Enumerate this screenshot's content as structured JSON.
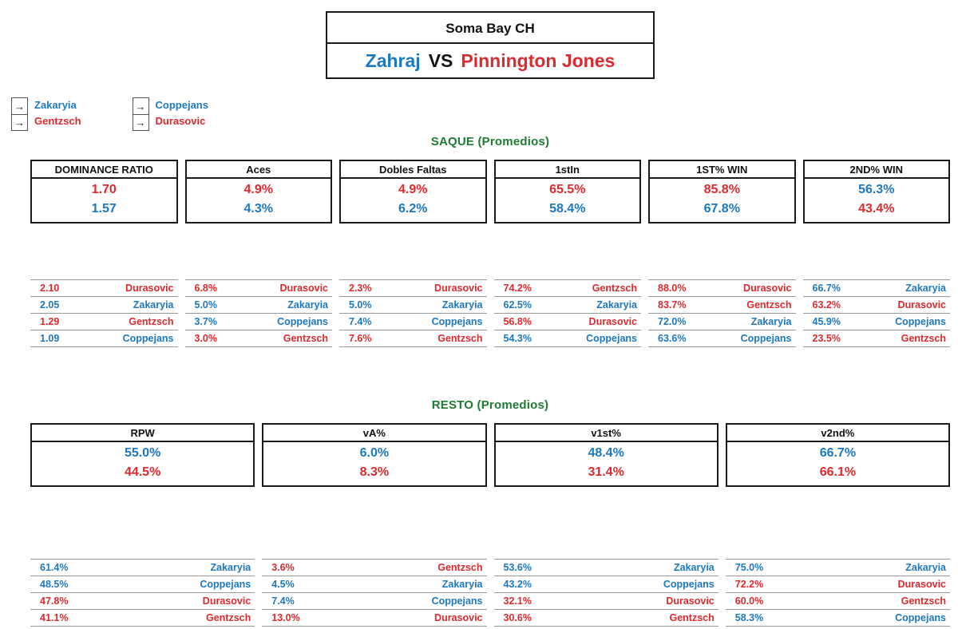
{
  "colors": {
    "blue": "#1e78be",
    "red": "#d92b30",
    "green": "#1f7a33"
  },
  "title": {
    "tournament": "Soma Bay CH",
    "player1": "Zahraj",
    "vs": "VS",
    "player2": "Pinnington Jones"
  },
  "legend": {
    "arrow": "→",
    "groups": [
      {
        "items": [
          {
            "name": "Zakaryia",
            "color": "blue"
          },
          {
            "name": "Gentzsch",
            "color": "red"
          }
        ]
      },
      {
        "items": [
          {
            "name": "Coppejans",
            "color": "blue"
          },
          {
            "name": "Durasovic",
            "color": "red"
          }
        ]
      }
    ]
  },
  "saque": {
    "header": "SAQUE (Promedios)",
    "boxes": [
      {
        "label": "DOMINANCE RATIO",
        "values": [
          {
            "text": "1.70",
            "color": "red"
          },
          {
            "text": "1.57",
            "color": "blue"
          }
        ]
      },
      {
        "label": "Aces",
        "values": [
          {
            "text": "4.9%",
            "color": "red"
          },
          {
            "text": "4.3%",
            "color": "blue"
          }
        ]
      },
      {
        "label": "Dobles Faltas",
        "values": [
          {
            "text": "4.9%",
            "color": "red"
          },
          {
            "text": "6.2%",
            "color": "blue"
          }
        ]
      },
      {
        "label": "1stIn",
        "values": [
          {
            "text": "65.5%",
            "color": "red"
          },
          {
            "text": "58.4%",
            "color": "blue"
          }
        ]
      },
      {
        "label": "1ST% WIN",
        "values": [
          {
            "text": "85.8%",
            "color": "red"
          },
          {
            "text": "67.8%",
            "color": "blue"
          }
        ]
      },
      {
        "label": "2ND% WIN",
        "values": [
          {
            "text": "56.3%",
            "color": "blue"
          },
          {
            "text": "43.4%",
            "color": "red"
          }
        ]
      }
    ],
    "lists": [
      [
        {
          "value": "2.10",
          "name": "Durasovic",
          "color": "red"
        },
        {
          "value": "2.05",
          "name": "Zakaryia",
          "color": "blue"
        },
        {
          "value": "1.29",
          "name": "Gentzsch",
          "color": "red"
        },
        {
          "value": "1.09",
          "name": "Coppejans",
          "color": "blue"
        }
      ],
      [
        {
          "value": "6.8%",
          "name": "Durasovic",
          "color": "red"
        },
        {
          "value": "5.0%",
          "name": "Zakaryia",
          "color": "blue"
        },
        {
          "value": "3.7%",
          "name": "Coppejans",
          "color": "blue"
        },
        {
          "value": "3.0%",
          "name": "Gentzsch",
          "color": "red"
        }
      ],
      [
        {
          "value": "2.3%",
          "name": "Durasovic",
          "color": "red"
        },
        {
          "value": "5.0%",
          "name": "Zakaryia",
          "color": "blue"
        },
        {
          "value": "7.4%",
          "name": "Coppejans",
          "color": "blue"
        },
        {
          "value": "7.6%",
          "name": "Gentzsch",
          "color": "red"
        }
      ],
      [
        {
          "value": "74.2%",
          "name": "Gentzsch",
          "color": "red"
        },
        {
          "value": "62.5%",
          "name": "Zakaryia",
          "color": "blue"
        },
        {
          "value": "56.8%",
          "name": "Durasovic",
          "color": "red"
        },
        {
          "value": "54.3%",
          "name": "Coppejans",
          "color": "blue"
        }
      ],
      [
        {
          "value": "88.0%",
          "name": "Durasovic",
          "color": "red"
        },
        {
          "value": "83.7%",
          "name": "Gentzsch",
          "color": "red"
        },
        {
          "value": "72.0%",
          "name": "Zakaryia",
          "color": "blue"
        },
        {
          "value": "63.6%",
          "name": "Coppejans",
          "color": "blue"
        }
      ],
      [
        {
          "value": "66.7%",
          "name": "Zakaryia",
          "color": "blue"
        },
        {
          "value": "63.2%",
          "name": "Durasovic",
          "color": "red"
        },
        {
          "value": "45.9%",
          "name": "Coppejans",
          "color": "blue"
        },
        {
          "value": "23.5%",
          "name": "Gentzsch",
          "color": "red"
        }
      ]
    ]
  },
  "resto": {
    "header": "RESTO (Promedios)",
    "boxes": [
      {
        "label": "RPW",
        "values": [
          {
            "text": "55.0%",
            "color": "blue"
          },
          {
            "text": "44.5%",
            "color": "red"
          }
        ]
      },
      {
        "label": "vA%",
        "values": [
          {
            "text": "6.0%",
            "color": "blue"
          },
          {
            "text": "8.3%",
            "color": "red"
          }
        ]
      },
      {
        "label": "v1st%",
        "values": [
          {
            "text": "48.4%",
            "color": "blue"
          },
          {
            "text": "31.4%",
            "color": "red"
          }
        ]
      },
      {
        "label": "v2nd%",
        "values": [
          {
            "text": "66.7%",
            "color": "blue"
          },
          {
            "text": "66.1%",
            "color": "red"
          }
        ]
      }
    ],
    "lists": [
      [
        {
          "value": "61.4%",
          "name": "Zakaryia",
          "color": "blue"
        },
        {
          "value": "48.5%",
          "name": "Coppejans",
          "color": "blue"
        },
        {
          "value": "47.8%",
          "name": "Durasovic",
          "color": "red"
        },
        {
          "value": "41.1%",
          "name": "Gentzsch",
          "color": "red"
        }
      ],
      [
        {
          "value": "3.6%",
          "name": "Gentzsch",
          "color": "red"
        },
        {
          "value": "4.5%",
          "name": "Zakaryia",
          "color": "blue"
        },
        {
          "value": "7.4%",
          "name": "Coppejans",
          "color": "blue"
        },
        {
          "value": "13.0%",
          "name": "Durasovic",
          "color": "red"
        }
      ],
      [
        {
          "value": "53.6%",
          "name": "Zakaryia",
          "color": "blue"
        },
        {
          "value": "43.2%",
          "name": "Coppejans",
          "color": "blue"
        },
        {
          "value": "32.1%",
          "name": "Durasovic",
          "color": "red"
        },
        {
          "value": "30.6%",
          "name": "Gentzsch",
          "color": "red"
        }
      ],
      [
        {
          "value": "75.0%",
          "name": "Zakaryia",
          "color": "blue"
        },
        {
          "value": "72.2%",
          "name": "Durasovic",
          "color": "red"
        },
        {
          "value": "60.0%",
          "name": "Gentzsch",
          "color": "red"
        },
        {
          "value": "58.3%",
          "name": "Coppejans",
          "color": "blue"
        }
      ]
    ]
  }
}
